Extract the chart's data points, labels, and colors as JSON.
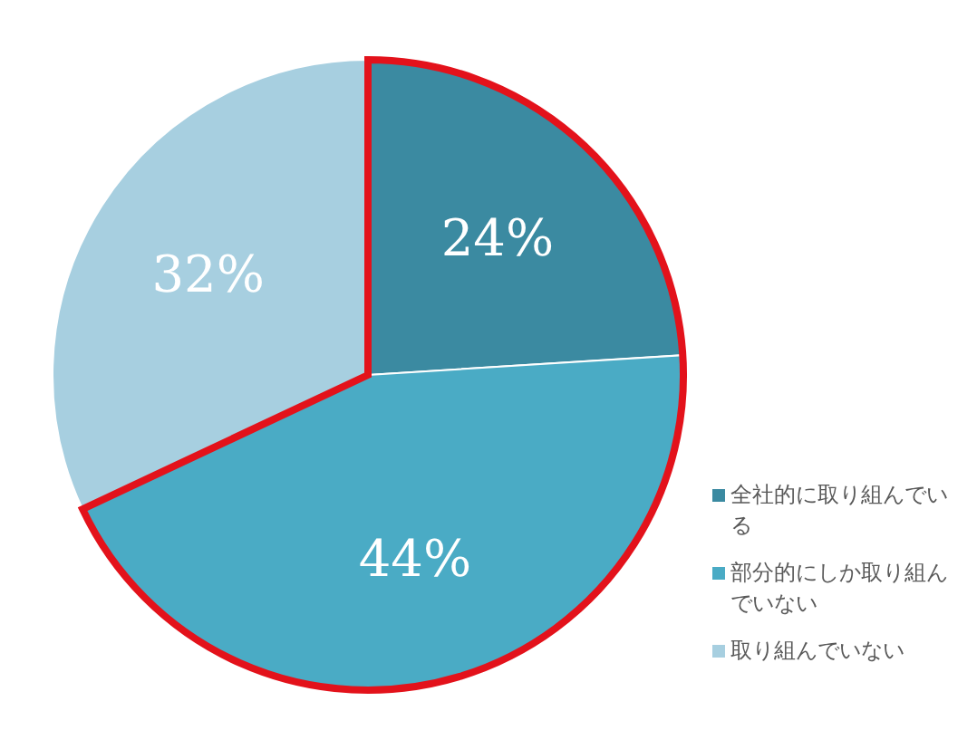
{
  "chart_data": {
    "type": "pie",
    "categories": [
      "全社的に取り組んでいる",
      "部分的にしか取り組んでいない",
      "取り組んでいない"
    ],
    "values": [
      24,
      44,
      32
    ],
    "colors": [
      "#3b8aa1",
      "#4aabc5",
      "#a7cfe0"
    ],
    "value_labels": [
      "24%",
      "44%",
      "32%"
    ],
    "legend": "right"
  }
}
